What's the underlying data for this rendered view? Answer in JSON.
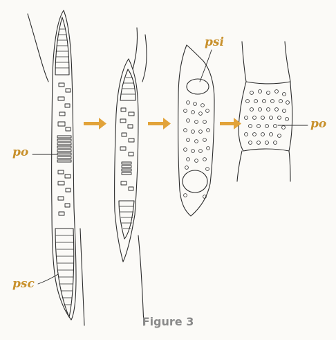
{
  "figure": {
    "caption": "Figure 3",
    "colors": {
      "label": "#c8902b",
      "arrow": "#e2a33a",
      "ink": "#2b2b2b",
      "caption": "#8a8a8a"
    },
    "labels": {
      "po_left": "po",
      "psc": "psc",
      "psi": "psi",
      "po_right": "po"
    },
    "arrow_count": 3
  }
}
